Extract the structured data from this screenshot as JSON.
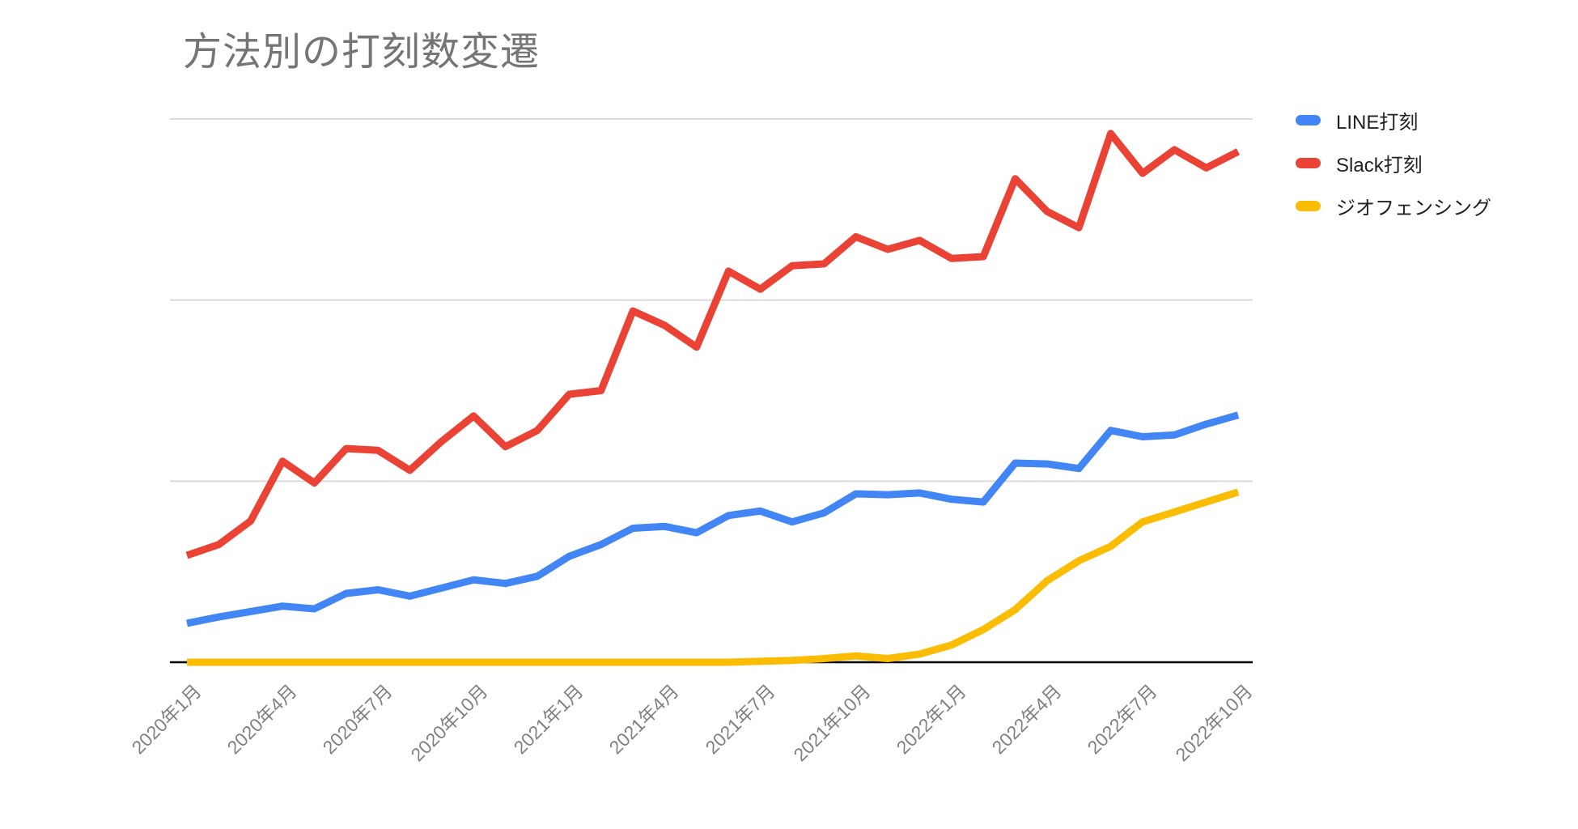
{
  "title": "方法別の打刻数変遷",
  "styles": {
    "title_color": "#757575",
    "axis_line_color": "#000000",
    "gridline_color": "#dadada",
    "tick_label_color": "#818181",
    "legend_text_color": "#202124",
    "background": "#ffffff"
  },
  "legend": {
    "position": "top-right",
    "items": [
      {
        "label": "LINE打刻",
        "color": "#4285F4"
      },
      {
        "label": "Slack打刻",
        "color": "#EA4335"
      },
      {
        "label": "ジオフェンシング",
        "color": "#FBBC04"
      }
    ]
  },
  "chart_data": {
    "type": "line",
    "title": "方法別の打刻数変遷",
    "xlabel": "",
    "ylabel": "",
    "y_axis_labels_visible": false,
    "ylim": [
      0,
      3000
    ],
    "y_gridlines": [
      1000,
      2000,
      3000
    ],
    "grid": "horizontal-only",
    "legend_position": "right-top",
    "months": [
      "2020年1月",
      "2020年2月",
      "2020年3月",
      "2020年4月",
      "2020年5月",
      "2020年6月",
      "2020年7月",
      "2020年8月",
      "2020年9月",
      "2020年10月",
      "2020年11月",
      "2020年12月",
      "2021年1月",
      "2021年2月",
      "2021年3月",
      "2021年4月",
      "2021年5月",
      "2021年6月",
      "2021年7月",
      "2021年8月",
      "2021年9月",
      "2021年10月",
      "2021年11月",
      "2021年12月",
      "2022年1月",
      "2022年2月",
      "2022年3月",
      "2022年4月",
      "2022年5月",
      "2022年6月",
      "2022年7月",
      "2022年8月",
      "2022年9月",
      "2022年10月"
    ],
    "tick_indices": [
      0,
      3,
      6,
      9,
      12,
      15,
      18,
      21,
      24,
      27,
      30,
      33
    ],
    "x_tick_labels": [
      "2020年1月",
      "2020年4月",
      "2020年7月",
      "2020年10月",
      "2021年1月",
      "2021年4月",
      "2021年7月",
      "2021年10月",
      "2022年1月",
      "2022年4月",
      "2022年7月",
      "2022年10月"
    ],
    "series": [
      {
        "name": "LINE打刻",
        "color": "#4285F4",
        "values": [
          215,
          250,
          280,
          310,
          295,
          380,
          400,
          365,
          410,
          455,
          435,
          475,
          585,
          650,
          740,
          750,
          715,
          810,
          835,
          775,
          825,
          930,
          925,
          935,
          900,
          885,
          1100,
          1095,
          1070,
          1280,
          1245,
          1255,
          1315,
          1365
        ]
      },
      {
        "name": "Slack打刻",
        "color": "#EA4335",
        "values": [
          590,
          650,
          780,
          1110,
          990,
          1180,
          1170,
          1060,
          1220,
          1360,
          1190,
          1280,
          1480,
          1500,
          1940,
          1860,
          1740,
          2160,
          2060,
          2190,
          2200,
          2350,
          2280,
          2330,
          2230,
          2240,
          2670,
          2490,
          2400,
          2920,
          2700,
          2830,
          2730,
          2820
        ]
      },
      {
        "name": "ジオフェンシング",
        "color": "#FBBC04",
        "values": [
          0,
          0,
          0,
          0,
          0,
          0,
          0,
          0,
          0,
          0,
          0,
          0,
          0,
          0,
          0,
          0,
          0,
          0,
          5,
          10,
          20,
          35,
          20,
          45,
          95,
          180,
          290,
          450,
          560,
          640,
          775,
          830,
          885,
          940
        ]
      }
    ]
  }
}
